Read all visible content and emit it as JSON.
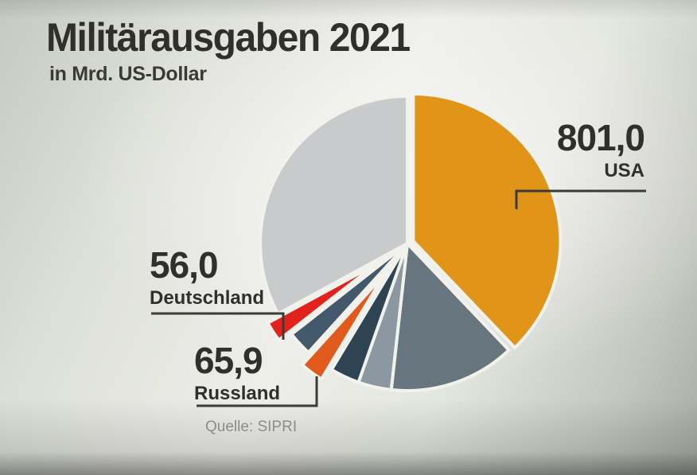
{
  "title": "Militärausgaben 2021",
  "subtitle": "in Mrd. US-Dollar",
  "source": "Quelle: SIPRI",
  "labels": {
    "usa": {
      "value": "801,0",
      "country": "USA"
    },
    "deutschland": {
      "value": "56,0",
      "country": "Deutschland"
    },
    "russland": {
      "value": "65,9",
      "country": "Russland"
    }
  },
  "colors": {
    "text": "#2f302b",
    "muted_text": "#8b8d87",
    "leader_line": "#3b3c38",
    "slice_gap": "#f1f2ec"
  },
  "chart_data": {
    "type": "pie",
    "title": "Militärausgaben 2021",
    "unit": "Mrd. US-Dollar",
    "source": "SIPRI",
    "direction": "clockwise",
    "start_angle_deg": 0,
    "total_estimated": 2114,
    "legend_position": "none",
    "note": "Only USA, Russland and Deutschland slices carry visible data labels; remaining slice values are estimated from arc angles.",
    "slices": [
      {
        "label": "USA",
        "display_value": "801,0",
        "value": 801.0,
        "labeled": true,
        "color": "#e09418",
        "explode": 8
      },
      {
        "label": "",
        "display_value": "",
        "value": 293,
        "labeled": false,
        "color": "#67757f",
        "explode": 0
      },
      {
        "label": "",
        "display_value": "",
        "value": 77,
        "labeled": false,
        "color": "#8b97a1",
        "explode": 0
      },
      {
        "label": "",
        "display_value": "",
        "value": 68,
        "labeled": false,
        "color": "#2e4453",
        "explode": 0
      },
      {
        "label": "Russland",
        "display_value": "65,9",
        "value": 65.9,
        "labeled": true,
        "color": "#e05a1d",
        "explode": 48
      },
      {
        "label": "",
        "display_value": "",
        "value": 57,
        "labeled": false,
        "color": "#43586a",
        "explode": 0
      },
      {
        "label": "Deutschland",
        "display_value": "56,0",
        "value": 56.0,
        "labeled": true,
        "color": "#e2231d",
        "explode": 48
      },
      {
        "label": "",
        "display_value": "",
        "value": 696,
        "labeled": false,
        "color": "#c9cacc",
        "explode": 0
      }
    ]
  }
}
